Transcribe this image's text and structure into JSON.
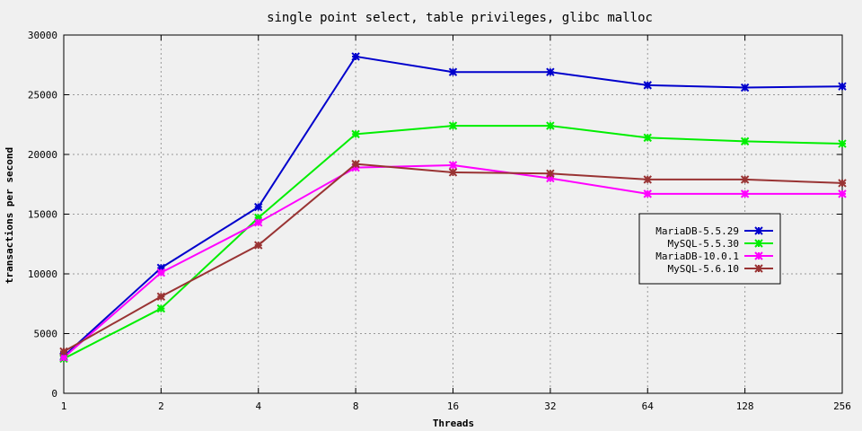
{
  "chart_data": {
    "type": "line",
    "title": "single point select, table privileges, glibc malloc",
    "xlabel": "Threads",
    "ylabel": "transactions per second",
    "x": [
      "1",
      "2",
      "4",
      "8",
      "16",
      "32",
      "64",
      "128",
      "256"
    ],
    "ylim": [
      0,
      30000
    ],
    "yticks": [
      "0",
      "5000",
      "10000",
      "15000",
      "20000",
      "25000",
      "30000"
    ],
    "yticks_values": [
      0,
      5000,
      10000,
      15000,
      20000,
      25000,
      30000
    ],
    "grid": true,
    "legend_position": "right",
    "series": [
      {
        "name": "MariaDB-5.5.29",
        "color": "#0000cc",
        "values": [
          3100,
          10500,
          15600,
          28200,
          26900,
          26900,
          25800,
          25600,
          25700
        ]
      },
      {
        "name": "MySQL-5.5.30",
        "color": "#00ee00",
        "values": [
          2900,
          7100,
          14700,
          21700,
          22400,
          22400,
          21400,
          21100,
          20900
        ]
      },
      {
        "name": "MariaDB-10.0.1",
        "color": "#ff00ff",
        "values": [
          3000,
          10100,
          14300,
          18900,
          19100,
          18000,
          16700,
          16700,
          16700
        ]
      },
      {
        "name": "MySQL-5.6.10",
        "color": "#993333",
        "values": [
          3500,
          8100,
          12400,
          19200,
          18500,
          18400,
          17900,
          17900,
          17600
        ]
      }
    ]
  }
}
